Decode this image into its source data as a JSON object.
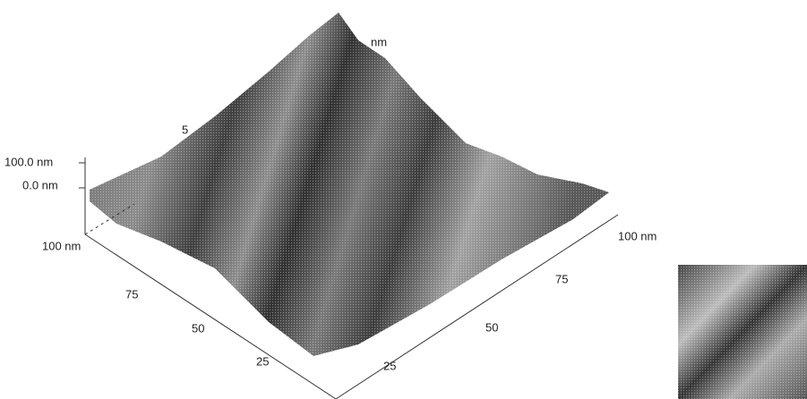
{
  "z_axis": {
    "labels": [
      "100.0 nm",
      "0.0 nm"
    ]
  },
  "left_axis": {
    "labels": [
      "100 nm",
      "75",
      "50",
      "25"
    ]
  },
  "right_axis": {
    "labels": [
      "25",
      "50",
      "75",
      "100 nm"
    ]
  },
  "back_fragments": [
    "nm",
    "5"
  ]
}
